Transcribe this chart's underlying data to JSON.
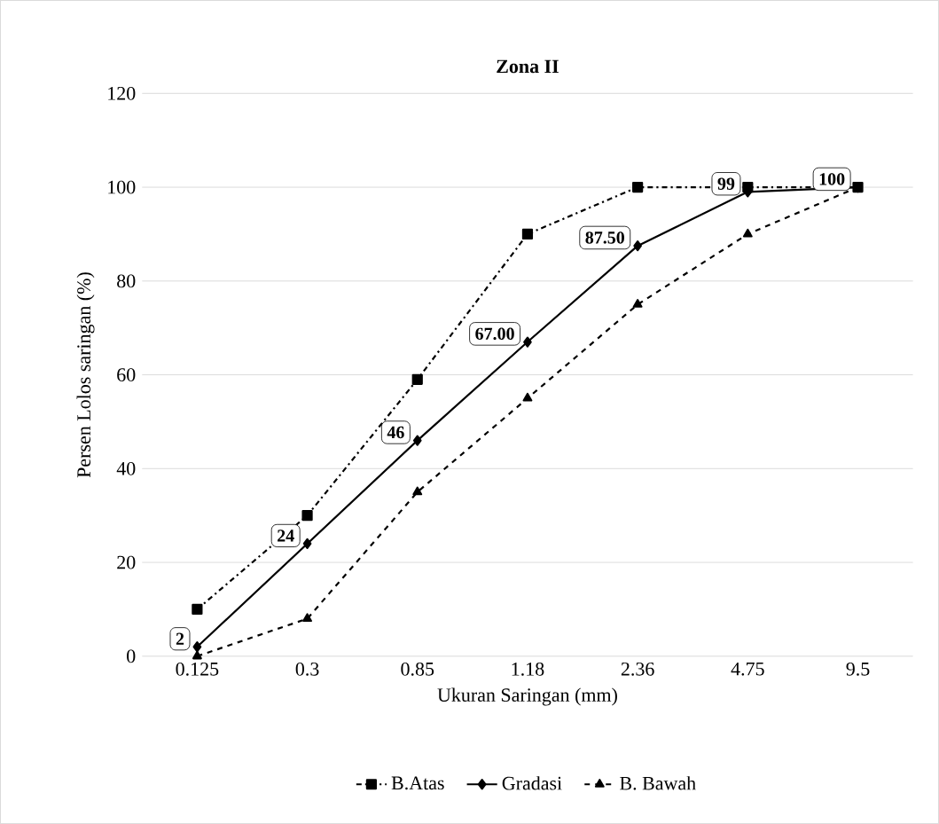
{
  "chart_data": {
    "type": "line",
    "title": "Zona II",
    "xlabel": "Ukuran Saringan (mm)",
    "ylabel": "Persen Lolos saringan (%)",
    "categories": [
      "0.125",
      "0.3",
      "0.85",
      "1.18",
      "2.36",
      "4.75",
      "9.5"
    ],
    "series": [
      {
        "name": "B.Atas",
        "color": "#000000",
        "marker": "square",
        "line_style": "dashdot",
        "values": [
          10,
          30,
          59,
          90,
          100,
          100,
          100
        ]
      },
      {
        "name": "Gradasi",
        "color": "#000000",
        "marker": "diamond",
        "line_style": "solid",
        "values": [
          2,
          24,
          46,
          67,
          87.5,
          99,
          100
        ],
        "value_labels": [
          "2",
          "24",
          "46",
          "67.00",
          "87.50",
          "99",
          "100"
        ]
      },
      {
        "name": "B. Bawah",
        "color": "#000000",
        "marker": "triangle",
        "line_style": "dashed",
        "values": [
          0,
          8,
          35,
          55,
          75,
          90,
          100
        ]
      }
    ],
    "ylim": [
      0,
      120
    ],
    "yticks": [
      0,
      20,
      40,
      60,
      80,
      100,
      120
    ],
    "grid": "y",
    "legend": "bottom"
  }
}
